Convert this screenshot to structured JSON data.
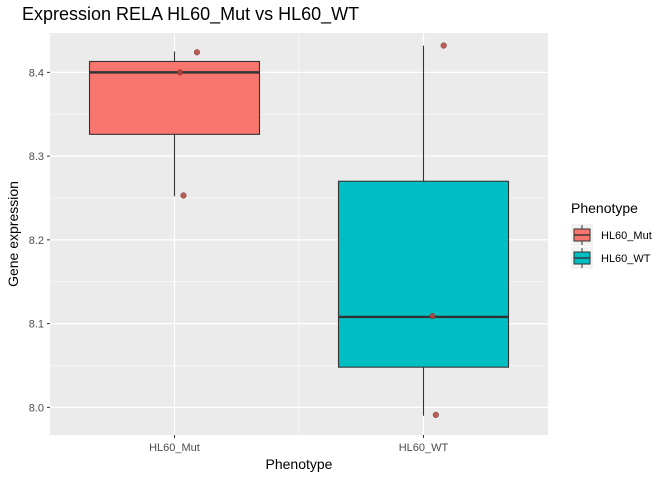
{
  "chart_data": {
    "type": "boxplot",
    "title": "Expression RELA HL60_Mut vs HL60_WT",
    "xlabel": "Phenotype",
    "ylabel": "Gene expression",
    "categories": [
      "HL60_Mut",
      "HL60_WT"
    ],
    "ylim": [
      7.967,
      8.447
    ],
    "yticks": [
      "8.0",
      "8.1",
      "8.2",
      "8.3",
      "8.4"
    ],
    "grid": true,
    "legend": {
      "title": "Phenotype",
      "position": "right",
      "entries": [
        "HL60_Mut",
        "HL60_WT"
      ]
    },
    "colors": {
      "HL60_Mut": "#F8766D",
      "HL60_WT": "#00BFC4",
      "points": "#B2453E",
      "panel": "#EBEBEB"
    },
    "boxes": [
      {
        "category": "HL60_Mut",
        "min": 8.252,
        "q1": 8.326,
        "median": 8.4,
        "q3": 8.413,
        "max": 8.425
      },
      {
        "category": "HL60_WT",
        "min": 7.99,
        "q1": 8.048,
        "median": 8.108,
        "q3": 8.27,
        "max": 8.432
      }
    ],
    "points": [
      {
        "category": "HL60_Mut",
        "value": 8.424,
        "jitter": 0.2
      },
      {
        "category": "HL60_Mut",
        "value": 8.4,
        "jitter": 0.05
      },
      {
        "category": "HL60_Mut",
        "value": 8.253,
        "jitter": 0.08
      },
      {
        "category": "HL60_WT",
        "value": 8.432,
        "jitter": 0.18
      },
      {
        "category": "HL60_WT",
        "value": 8.109,
        "jitter": 0.08
      },
      {
        "category": "HL60_WT",
        "value": 7.991,
        "jitter": 0.11
      }
    ]
  }
}
